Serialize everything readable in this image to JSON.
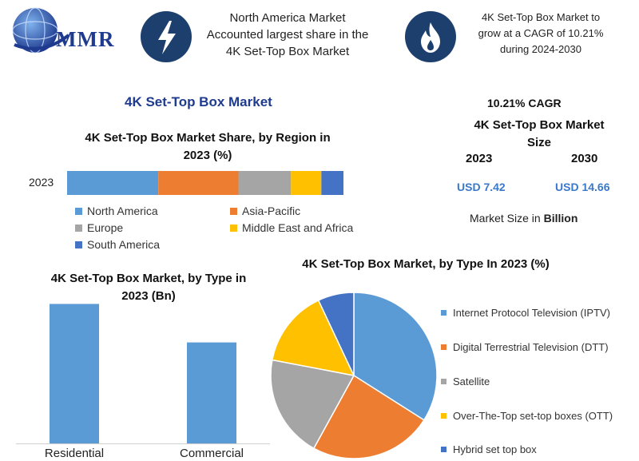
{
  "logo": {
    "text": "MMR",
    "colors": {
      "primary": "#1f3b8f",
      "globe": "#2f67b8"
    }
  },
  "header": {
    "box1_text": [
      "North America Market",
      "Accounted largest share in the",
      "4K Set-Top Box Market"
    ],
    "box2_text": [
      "4K Set-Top Box Market to",
      "grow at a CAGR of 10.21%",
      "during 2024-2030"
    ],
    "icon1": "lightning-icon",
    "icon2": "flame-icon"
  },
  "main_title": "4K Set-Top Box Market",
  "stats": {
    "cagr": "10.21% CAGR",
    "size_title": [
      "4K Set-Top Box Market",
      "Size"
    ],
    "year1": "2023",
    "year2": "2030",
    "value1": "USD 7.42",
    "value2": "USD 14.66",
    "unit_prefix": "Market Size in ",
    "unit_bold": "Billion"
  },
  "chart_data": [
    {
      "type": "bar",
      "orientation": "horizontal-stacked",
      "title": "4K Set-Top Box Market Share, by Region in 2023 (%)",
      "title_lines": [
        "4K Set-Top Box Market Share, by Region in",
        "2023 (%)"
      ],
      "categories": [
        "2023"
      ],
      "series": [
        {
          "name": "North America",
          "values": [
            33
          ],
          "color": "#5b9bd5"
        },
        {
          "name": "Asia-Pacific",
          "values": [
            29
          ],
          "color": "#ed7d31"
        },
        {
          "name": "Europe",
          "values": [
            19
          ],
          "color": "#a5a5a5"
        },
        {
          "name": "Middle East and Africa",
          "values": [
            11
          ],
          "color": "#ffc000"
        },
        {
          "name": "South America",
          "values": [
            8
          ],
          "color": "#4472c4"
        }
      ],
      "xlim": [
        0,
        100
      ],
      "legend": "bottom"
    },
    {
      "type": "bar",
      "title": "4K Set-Top Box Market, by Type in 2023 (Bn)",
      "title_lines": [
        "4K Set-Top Box Market, by Type in",
        "2023 (Bn)"
      ],
      "categories": [
        "Residential",
        "Commercial"
      ],
      "values": [
        4.3,
        3.12
      ],
      "color": "#5b9bd5",
      "ylim": [
        0,
        4.8
      ]
    },
    {
      "type": "pie",
      "title": "4K Set-Top Box Market, by Type In 2023 (%)",
      "slices": [
        {
          "name": "Internet Protocol Television (IPTV)",
          "value": 34,
          "color": "#5b9bd5"
        },
        {
          "name": "Digital Terrestrial Television (DTT)",
          "value": 24,
          "color": "#ed7d31"
        },
        {
          "name": "Satellite",
          "value": 20,
          "color": "#a5a5a5"
        },
        {
          "name": "Over-The-Top set-top boxes (OTT)",
          "value": 15,
          "color": "#ffc000"
        },
        {
          "name": "Hybrid set top box",
          "value": 7,
          "color": "#4472c4"
        }
      ],
      "legend": "right"
    }
  ]
}
